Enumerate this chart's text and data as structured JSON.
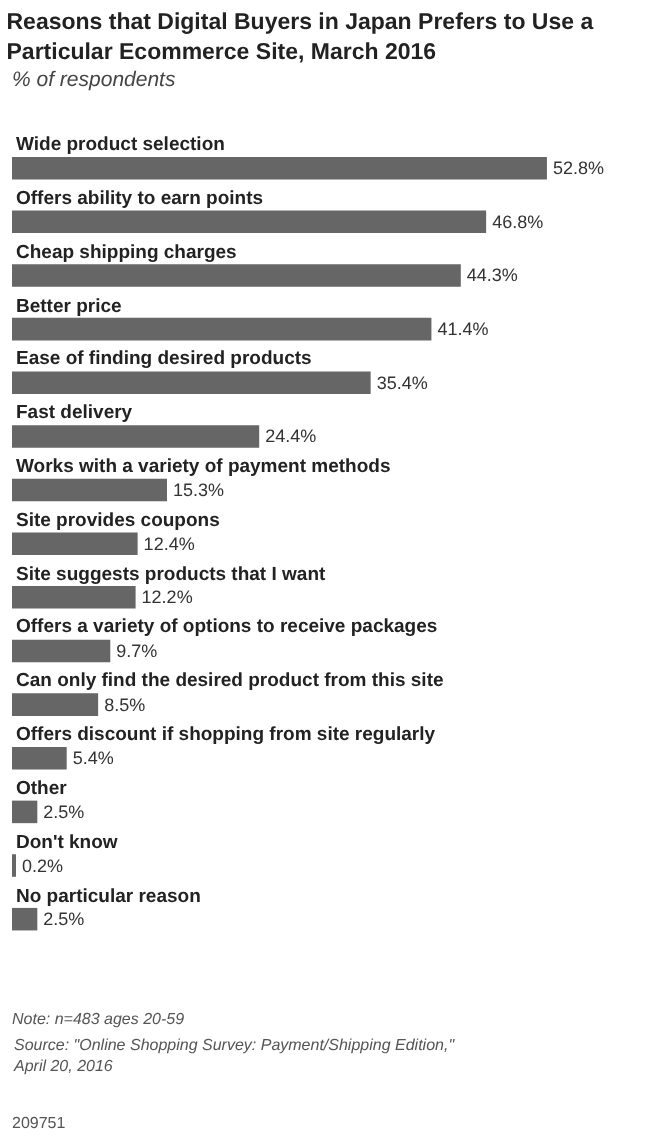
{
  "chart_data": {
    "type": "bar",
    "orientation": "horizontal",
    "title": "Reasons that Digital Buyers in Japan Prefers to Use a Particular Ecommerce Site, March 2016",
    "subtitle": "% of respondents",
    "categories": [
      "Wide product selection",
      "Offers ability to earn points",
      "Cheap shipping charges",
      "Better price",
      "Ease of finding desired products",
      "Fast delivery",
      "Works with a variety of payment methods",
      "Site provides coupons",
      "Site suggests products that I want",
      "Offers a variety of options to receive packages",
      "Can only find the desired product from this site",
      "Offers discount if shopping from site regularly",
      "Other",
      "Don't know",
      "No particular reason"
    ],
    "values": [
      52.8,
      46.8,
      44.3,
      41.4,
      35.4,
      24.4,
      15.3,
      12.4,
      12.2,
      9.7,
      8.5,
      5.4,
      2.5,
      0.2,
      2.5
    ],
    "value_labels": [
      "52.8%",
      "46.8%",
      "44.3%",
      "41.4%",
      "35.4%",
      "24.4%",
      "15.3%",
      "12.4%",
      "12.2%",
      "9.7%",
      "8.5%",
      "5.4%",
      "2.5%",
      "0.2%",
      "2.5%"
    ],
    "color": "#666666",
    "grid": false,
    "annotations": [
      "Note: n=483 ages 20-59",
      "Source: \"Online Shopping Survey: Payment/Shipping Edition,\" April 20, 2016",
      "209751"
    ]
  }
}
